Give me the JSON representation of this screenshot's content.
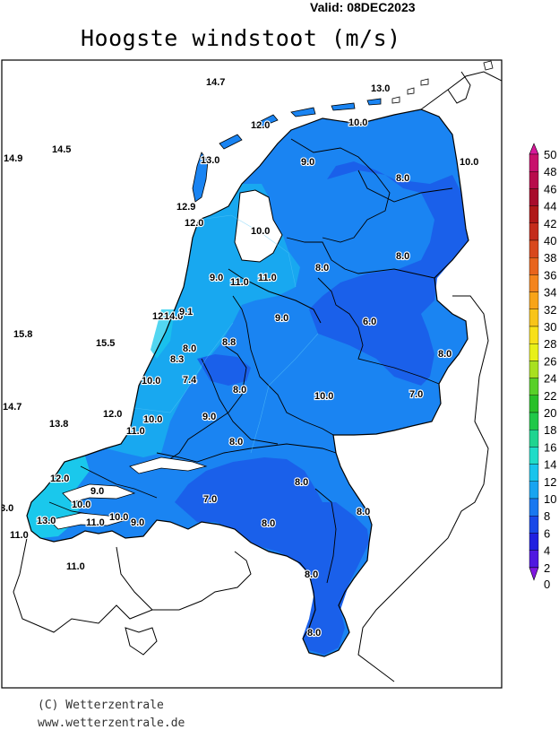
{
  "header": {
    "valid": "Valid:  08DEC2023",
    "title": "Hoogste windstoot (m/s)"
  },
  "footer": {
    "copyright": "(C) Wetterzentrale",
    "url": "www.wetterzentrale.de"
  },
  "colorbar": {
    "ticks": [
      "50",
      "48",
      "46",
      "44",
      "42",
      "40",
      "38",
      "36",
      "34",
      "32",
      "30",
      "28",
      "26",
      "24",
      "22",
      "20",
      "18",
      "16",
      "14",
      "12",
      "10",
      "8",
      "6",
      "4",
      "2",
      "0"
    ],
    "colors": [
      "#d8189a",
      "#c8106c",
      "#b80c4c",
      "#a80c2c",
      "#b01818",
      "#c42c1c",
      "#d8481c",
      "#e8641c",
      "#f4841c",
      "#f8a418",
      "#f8c418",
      "#f8e018",
      "#e8f018",
      "#a8e020",
      "#58d028",
      "#28c028",
      "#20c848",
      "#20d490",
      "#20dcc8",
      "#18c4ec",
      "#18a4f0",
      "#1878f0",
      "#1848e8",
      "#2020e0",
      "#5018e0",
      "#8018e0"
    ]
  },
  "map": {
    "colors": {
      "sea": "#ffffff",
      "band_10_12": "#18a8f0",
      "band_8_10": "#1a84f2",
      "band_6_8": "#1a60ea",
      "band_12_14": "#1ac8ec",
      "border": "#000000"
    },
    "labels": [
      {
        "text": "14.7"
      },
      {
        "text": "13.0"
      },
      {
        "text": "12.0"
      },
      {
        "text": "10.0"
      },
      {
        "text": "14.9"
      },
      {
        "text": "14.5"
      },
      {
        "text": "13.0"
      },
      {
        "text": "9.0"
      },
      {
        "text": "10.0"
      },
      {
        "text": "8.0"
      },
      {
        "text": "12.9"
      },
      {
        "text": "12.0"
      },
      {
        "text": "10.0"
      },
      {
        "text": "8.0"
      },
      {
        "text": "8.0"
      },
      {
        "text": "9.0"
      },
      {
        "text": "11.0"
      },
      {
        "text": "11.0"
      },
      {
        "text": "12"
      },
      {
        "text": "14.0"
      },
      {
        "text": "9.1"
      },
      {
        "text": "9.0"
      },
      {
        "text": "6.0"
      },
      {
        "text": "15.8"
      },
      {
        "text": "15.5"
      },
      {
        "text": "8.0"
      },
      {
        "text": "8.8"
      },
      {
        "text": "8.3"
      },
      {
        "text": "8.0"
      },
      {
        "text": "10.0"
      },
      {
        "text": "7.4"
      },
      {
        "text": "8.0"
      },
      {
        "text": "10.0"
      },
      {
        "text": "7.0"
      },
      {
        "text": "14.7"
      },
      {
        "text": "12.0"
      },
      {
        "text": "13.8"
      },
      {
        "text": "10.0"
      },
      {
        "text": "9.0"
      },
      {
        "text": "11.0"
      },
      {
        "text": "8.0"
      },
      {
        "text": "12.0"
      },
      {
        "text": "9.0"
      },
      {
        "text": "8.0"
      },
      {
        "text": "10.0"
      },
      {
        "text": "7.0"
      },
      {
        "text": "8.0"
      },
      {
        "text": "3.0"
      },
      {
        "text": "13.0"
      },
      {
        "text": "11.0"
      },
      {
        "text": "10.0"
      },
      {
        "text": "9.0"
      },
      {
        "text": "8.0"
      },
      {
        "text": "11.0"
      },
      {
        "text": "11.0"
      },
      {
        "text": "8.0"
      },
      {
        "text": "8.0"
      }
    ]
  }
}
